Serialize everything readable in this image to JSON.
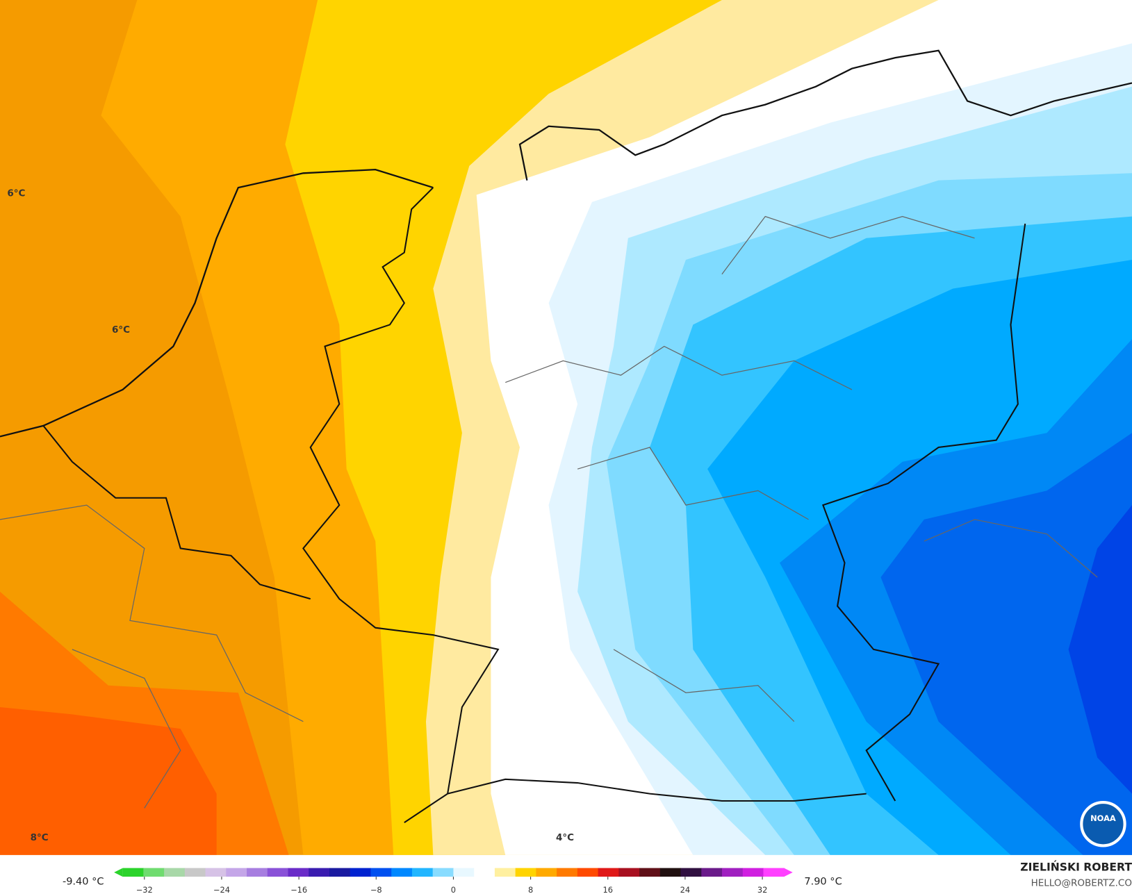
{
  "map": {
    "contour_labels": [
      "6°C",
      "6°C",
      "8°C",
      "4°C"
    ],
    "colorbar": {
      "min_label": "-9.40 °C",
      "max_label": "7.90 °C",
      "ticks": [
        {
          "value": -32,
          "label": "−32"
        },
        {
          "value": -24,
          "label": "−24"
        },
        {
          "value": -16,
          "label": "−16"
        },
        {
          "value": -8,
          "label": "−8"
        },
        0,
        8,
        16,
        24,
        32
      ],
      "colors": [
        "#2bd32b",
        "#6fdc6f",
        "#a8d8a8",
        "#c8c8c8",
        "#d6c2e6",
        "#c4a6e8",
        "#a77ee0",
        "#8a52d8",
        "#6a2cc8",
        "#3a1cb0",
        "#1a1aa0",
        "#0022d0",
        "#0050f0",
        "#0088ff",
        "#22b6ff",
        "#88dcff",
        "#e8f8ff",
        "#ffffff",
        "#fff0a0",
        "#ffd400",
        "#ffaa00",
        "#ff7a00",
        "#ff4a00",
        "#e01818",
        "#a81020",
        "#601018",
        "#201010",
        "#301040",
        "#6a1a8a",
        "#a020c0",
        "#d020e0",
        "#ff40ff"
      ]
    },
    "author": "ZIELIŃSKI ROBERT",
    "contact": "HELLO@ROBERTZ.CO",
    "logo": "NOAA"
  }
}
